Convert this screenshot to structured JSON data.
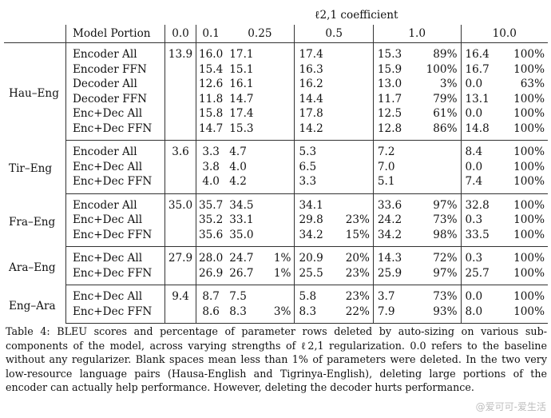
{
  "header": {
    "coefficient_label": "ℓ2,1 coefficient",
    "model_portion": "Model Portion",
    "columns": [
      "0.0",
      "0.1",
      "0.25",
      "0.5",
      "1.0",
      "10.0"
    ]
  },
  "groups": [
    {
      "lang": "Hau–Eng",
      "rows": [
        {
          "model": "Encoder All",
          "c0": "13.9",
          "c1": "16.0",
          "c25": "17.1",
          "p25": "",
          "c5": "17.4",
          "p5": "",
          "c10": "15.3",
          "p10": "89%",
          "c100": "16.4",
          "p100": "100%"
        },
        {
          "model": "Encoder FFN",
          "c0": "",
          "c1": "15.4",
          "c25": "15.1",
          "p25": "",
          "c5": "16.3",
          "p5": "",
          "c10": "15.9",
          "p10": "100%",
          "c100": "16.7",
          "p100": "100%"
        },
        {
          "model": "Decoder All",
          "c0": "",
          "c1": "12.6",
          "c25": "16.1",
          "p25": "",
          "c5": "16.2",
          "p5": "",
          "c10": "13.0",
          "p10": "3%",
          "c100": "0.0",
          "p100": "63%"
        },
        {
          "model": "Decoder FFN",
          "c0": "",
          "c1": "11.8",
          "c25": "14.7",
          "p25": "",
          "c5": "14.4",
          "p5": "",
          "c10": "11.7",
          "p10": "79%",
          "c100": "13.1",
          "p100": "100%"
        },
        {
          "model": "Enc+Dec All",
          "c0": "",
          "c1": "15.8",
          "c25": "17.4",
          "p25": "",
          "c5": "17.8",
          "p5": "",
          "c10": "12.5",
          "p10": "61%",
          "c100": "0.0",
          "p100": "100%"
        },
        {
          "model": "Enc+Dec FFN",
          "c0": "",
          "c1": "14.7",
          "c25": "15.3",
          "p25": "",
          "c5": "14.2",
          "p5": "",
          "c10": "12.8",
          "p10": "86%",
          "c100": "14.8",
          "p100": "100%"
        }
      ]
    },
    {
      "lang": "Tir–Eng",
      "rows": [
        {
          "model": "Encoder All",
          "c0": "3.6",
          "c1": "3.3",
          "c25": "4.7",
          "p25": "",
          "c5": "5.3",
          "p5": "",
          "c10": "7.2",
          "p10": "",
          "c100": "8.4",
          "p100": "100%"
        },
        {
          "model": "Enc+Dec All",
          "c0": "",
          "c1": "3.8",
          "c25": "4.0",
          "p25": "",
          "c5": "6.5",
          "p5": "",
          "c10": "7.0",
          "p10": "",
          "c100": "0.0",
          "p100": "100%"
        },
        {
          "model": "Enc+Dec FFN",
          "c0": "",
          "c1": "4.0",
          "c25": "4.2",
          "p25": "",
          "c5": "3.3",
          "p5": "",
          "c10": "5.1",
          "p10": "",
          "c100": "7.4",
          "p100": "100%"
        }
      ]
    },
    {
      "lang": "Fra–Eng",
      "rows": [
        {
          "model": "Encoder All",
          "c0": "35.0",
          "c1": "35.7",
          "c25": "34.5",
          "p25": "",
          "c5": "34.1",
          "p5": "",
          "c10": "33.6",
          "p10": "97%",
          "c100": "32.8",
          "p100": "100%"
        },
        {
          "model": "Enc+Dec All",
          "c0": "",
          "c1": "35.2",
          "c25": "33.1",
          "p25": "",
          "c5": "29.8",
          "p5": "23%",
          "c10": "24.2",
          "p10": "73%",
          "c100": "0.3",
          "p100": "100%"
        },
        {
          "model": "Enc+Dec FFN",
          "c0": "",
          "c1": "35.6",
          "c25": "35.0",
          "p25": "",
          "c5": "34.2",
          "p5": "15%",
          "c10": "34.2",
          "p10": "98%",
          "c100": "33.5",
          "p100": "100%"
        }
      ]
    },
    {
      "lang": "Ara–Eng",
      "rows": [
        {
          "model": "Enc+Dec All",
          "c0": "27.9",
          "c1": "28.0",
          "c25": "24.7",
          "p25": "1%",
          "c5": "20.9",
          "p5": "20%",
          "c10": "14.3",
          "p10": "72%",
          "c100": "0.3",
          "p100": "100%"
        },
        {
          "model": "Enc+Dec FFN",
          "c0": "",
          "c1": "26.9",
          "c25": "26.7",
          "p25": "1%",
          "c5": "25.5",
          "p5": "23%",
          "c10": "25.9",
          "p10": "97%",
          "c100": "25.7",
          "p100": "100%"
        }
      ]
    },
    {
      "lang": "Eng–Ara",
      "rows": [
        {
          "model": "Enc+Dec All",
          "c0": "9.4",
          "c1": "8.7",
          "c25": "7.5",
          "p25": "",
          "c5": "5.8",
          "p5": "23%",
          "c10": "3.7",
          "p10": "73%",
          "c100": "0.0",
          "p100": "100%"
        },
        {
          "model": "Enc+Dec FFN",
          "c0": "",
          "c1": "8.6",
          "c25": "8.3",
          "p25": "3%",
          "c5": "8.3",
          "p5": "22%",
          "c10": "7.9",
          "p10": "93%",
          "c100": "8.0",
          "p100": "100%"
        }
      ]
    }
  ],
  "caption": "Table 4: BLEU scores and percentage of parameter rows deleted by auto-sizing on various sub-components of the model, across varying strengths of ℓ2,1 regularization. 0.0 refers to the baseline without any regularizer. Blank spaces mean less than 1% of parameters were deleted. In the two very low-resource language pairs (Hausa-English and Tigrinya-English), deleting large portions of the encoder can actually help performance. However, deleting the decoder hurts performance.",
  "watermark": "@爱可可-爱生活"
}
